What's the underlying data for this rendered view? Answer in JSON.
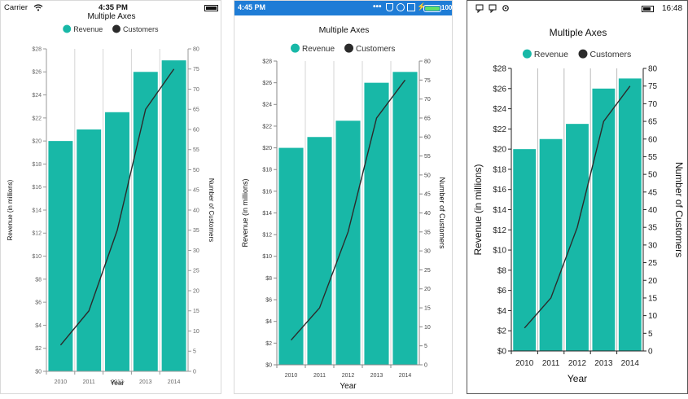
{
  "colors": {
    "revenue": "#18B8A7",
    "customers": "#2b2b2b",
    "android_bar": "#1e7cd6"
  },
  "ios_status": {
    "carrier": "Carrier",
    "time": "4:35 PM",
    "icons": [
      "wifi-icon",
      "battery-icon"
    ]
  },
  "android_status": {
    "time": "4:45 PM",
    "battery": "100%",
    "icons": [
      "more-icon",
      "shield-icon",
      "app-icon",
      "box-icon",
      "charging-icon",
      "battery-icon"
    ]
  },
  "uwp_status": {
    "time": "16:48",
    "icons": [
      "message-icon",
      "message-icon",
      "settings-icon",
      "battery-icon"
    ]
  },
  "chart_data": {
    "type": "bar",
    "title": "Multiple Axes",
    "xlabel": "Year",
    "ylabel": "Revenue (in millions)",
    "y2label": "Number of Customers",
    "categories": [
      "2010",
      "2011",
      "2012",
      "2013",
      "2014"
    ],
    "ylim": [
      0,
      28
    ],
    "yticks": [
      "$0",
      "$2",
      "$4",
      "$6",
      "$8",
      "$10",
      "$12",
      "$14",
      "$16",
      "$18",
      "$20",
      "$22",
      "$24",
      "$26",
      "$28"
    ],
    "y2lim": [
      0,
      80
    ],
    "y2ticks": [
      "0",
      "5",
      "10",
      "15",
      "20",
      "25",
      "30",
      "35",
      "40",
      "45",
      "50",
      "55",
      "60",
      "65",
      "70",
      "75",
      "80"
    ],
    "legend_position": "top",
    "grid": "vertical",
    "series": [
      {
        "name": "Revenue",
        "type": "bar",
        "axis": "left",
        "values": [
          20,
          21,
          22.5,
          26,
          27
        ]
      },
      {
        "name": "Customers",
        "type": "line",
        "axis": "right",
        "values": [
          6.5,
          15,
          35,
          65,
          75
        ]
      }
    ]
  }
}
